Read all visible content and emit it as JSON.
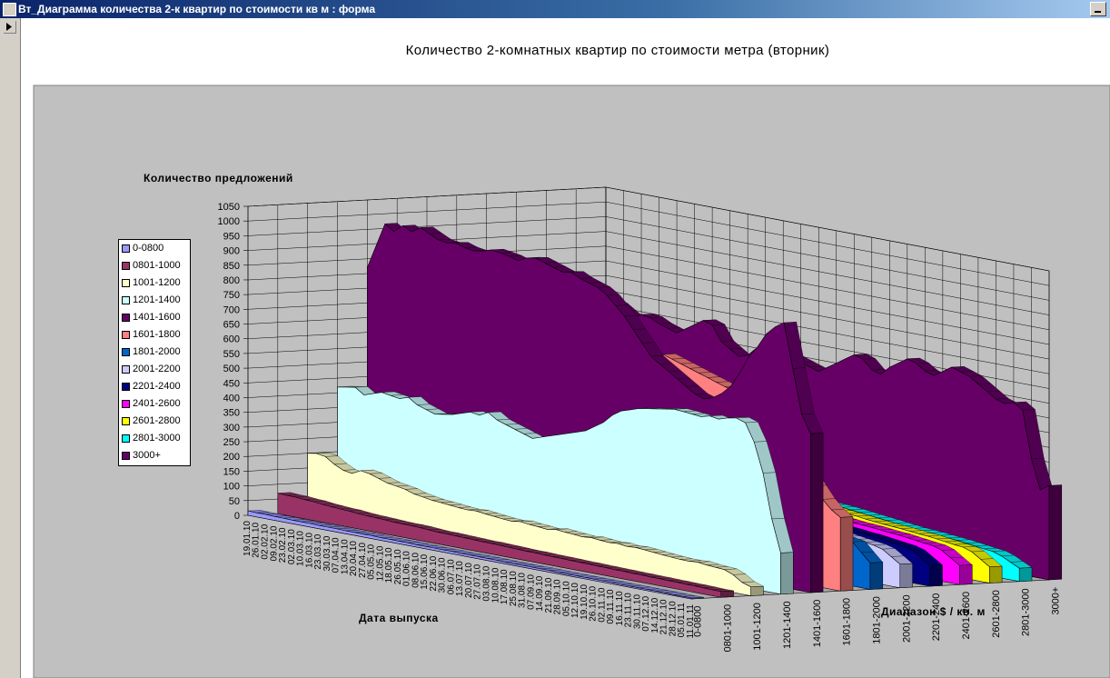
{
  "window": {
    "title": "Вт_Диаграмма количества 2-к квартир по стоимости кв м : форма"
  },
  "colors": {
    "chart_area": "#c0c0c0",
    "titlebar": "#0a246a"
  },
  "chart_data": {
    "type": "area",
    "variant": "3d",
    "title": "Количество 2-комнатных квартир по стоимости метра (вторник)",
    "ylabel": "Количество предложений",
    "xlabel": "Дата выпуска",
    "zlabel": "Диапазон $ / кв. м",
    "ylim": [
      0,
      1050
    ],
    "yticks": [
      0,
      50,
      100,
      150,
      200,
      250,
      300,
      350,
      400,
      450,
      500,
      550,
      600,
      650,
      700,
      750,
      800,
      850,
      900,
      950,
      1000,
      1050
    ],
    "grid": true,
    "legend_position": "left",
    "x": [
      "19.01.10",
      "26.01.10",
      "02.02.10",
      "09.02.10",
      "23.02.10",
      "02.03.10",
      "10.03.10",
      "16.03.10",
      "23.03.10",
      "30.03.10",
      "07.04.10",
      "13.04.10",
      "20.04.10",
      "27.04.10",
      "05.05.10",
      "12.05.10",
      "18.05.10",
      "26.05.10",
      "01.06.10",
      "08.06.10",
      "15.06.10",
      "22.06.10",
      "30.06.10",
      "06.07.10",
      "13.07.10",
      "20.07.10",
      "27.07.10",
      "03.08.10",
      "10.08.10",
      "17.08.10",
      "25.08.10",
      "31.08.10",
      "07.09.10",
      "14.09.10",
      "21.09.10",
      "28.09.10",
      "05.10.10",
      "12.10.10",
      "19.10.10",
      "26.10.10",
      "02.11.10",
      "09.11.10",
      "16.11.10",
      "23.11.10",
      "30.11.10",
      "07.12.10",
      "14.12.10",
      "21.12.10",
      "28.12.10",
      "05.01.11",
      "11.01.11"
    ],
    "series": [
      {
        "name": "0-0800",
        "color": "#9999ff",
        "values": [
          15,
          14,
          14,
          13,
          13,
          12,
          12,
          12,
          11,
          11,
          11,
          10,
          10,
          10,
          10,
          9,
          9,
          9,
          9,
          8,
          8,
          8,
          8,
          8,
          7,
          7,
          7,
          7,
          7,
          6,
          6,
          6,
          6,
          6,
          6,
          5,
          5,
          5,
          5,
          5,
          5,
          5,
          4,
          4,
          4,
          4,
          4,
          4,
          3,
          3,
          3
        ]
      },
      {
        "name": "0801-1000",
        "color": "#993366",
        "values": [
          70,
          68,
          68,
          65,
          64,
          60,
          58,
          56,
          55,
          52,
          50,
          49,
          48,
          46,
          45,
          45,
          44,
          42,
          40,
          40,
          39,
          38,
          37,
          36,
          36,
          35,
          34,
          33,
          32,
          32,
          31,
          30,
          30,
          29,
          28,
          28,
          27,
          27,
          26,
          26,
          25,
          25,
          24,
          24,
          23,
          23,
          22,
          22,
          21,
          20,
          20
        ]
      },
      {
        "name": "1001-1200",
        "color": "#ffffcc",
        "values": [
          200,
          205,
          200,
          180,
          165,
          160,
          175,
          170,
          160,
          150,
          145,
          140,
          130,
          125,
          120,
          118,
          115,
          112,
          110,
          112,
          108,
          105,
          102,
          100,
          104,
          100,
          98,
          95,
          100,
          97,
          95,
          92,
          95,
          92,
          90,
          92,
          88,
          90,
          88,
          85,
          82,
          80,
          78,
          78,
          80,
          76,
          74,
          72,
          60,
          40,
          30
        ]
      },
      {
        "name": "1201-1400",
        "color": "#ccffff",
        "values": [
          420,
          425,
          430,
          410,
          420,
          430,
          425,
          420,
          430,
          410,
          400,
          390,
          395,
          400,
          410,
          420,
          415,
          430,
          410,
          400,
          390,
          380,
          370,
          380,
          390,
          400,
          410,
          420,
          430,
          450,
          470,
          500,
          520,
          530,
          540,
          545,
          550,
          555,
          560,
          558,
          555,
          552,
          560,
          555,
          565,
          570,
          560,
          500,
          400,
          250,
          140
        ]
      },
      {
        "name": "1401-1600",
        "color": "#660066",
        "values": [
          820,
          900,
          980,
          960,
          985,
          970,
          990,
          975,
          960,
          955,
          960,
          950,
          945,
          950,
          960,
          955,
          950,
          940,
          955,
          960,
          950,
          940,
          930,
          935,
          920,
          910,
          900,
          880,
          850,
          820,
          780,
          740,
          700,
          680,
          660,
          640,
          620,
          600,
          590,
          600,
          620,
          650,
          700,
          760,
          800,
          850,
          880,
          900,
          750,
          600,
          540
        ]
      },
      {
        "name": "1601-1800",
        "color": "#ff8080",
        "values": [
          720,
          710,
          700,
          690,
          680,
          700,
          705,
          700,
          690,
          680,
          690,
          700,
          695,
          690,
          700,
          710,
          705,
          700,
          690,
          680,
          670,
          660,
          650,
          640,
          630,
          640,
          650,
          660,
          670,
          680,
          690,
          680,
          670,
          660,
          650,
          640,
          630,
          620,
          610,
          600,
          580,
          560,
          540,
          500,
          460,
          420,
          380,
          340,
          300,
          270,
          250
        ]
      },
      {
        "name": "1801-2000",
        "color": "#0066cc",
        "values": [
          300,
          310,
          305,
          300,
          310,
          305,
          300,
          295,
          300,
          305,
          300,
          295,
          290,
          295,
          300,
          295,
          290,
          285,
          290,
          295,
          290,
          285,
          280,
          275,
          270,
          265,
          260,
          255,
          250,
          245,
          240,
          235,
          230,
          225,
          220,
          215,
          210,
          205,
          200,
          195,
          190,
          185,
          180,
          175,
          170,
          165,
          160,
          155,
          150,
          120,
          90
        ]
      },
      {
        "name": "2001-2200",
        "color": "#ccccff",
        "values": [
          230,
          235,
          230,
          225,
          230,
          235,
          230,
          228,
          232,
          230,
          225,
          222,
          225,
          228,
          226,
          222,
          220,
          218,
          220,
          222,
          218,
          215,
          212,
          210,
          208,
          205,
          200,
          198,
          195,
          192,
          190,
          186,
          182,
          178,
          175,
          170,
          168,
          165,
          160,
          158,
          155,
          150,
          148,
          145,
          140,
          136,
          132,
          128,
          120,
          100,
          80
        ]
      },
      {
        "name": "2201-2400",
        "color": "#000080",
        "values": [
          220,
          222,
          218,
          215,
          218,
          220,
          216,
          214,
          218,
          215,
          212,
          210,
          212,
          214,
          210,
          208,
          205,
          202,
          205,
          206,
          202,
          200,
          198,
          195,
          192,
          190,
          186,
          184,
          180,
          178,
          175,
          172,
          168,
          165,
          162,
          158,
          155,
          152,
          148,
          145,
          142,
          140,
          136,
          134,
          130,
          126,
          122,
          118,
          110,
          90,
          70
        ]
      },
      {
        "name": "2401-2600",
        "color": "#ff00ff",
        "values": [
          205,
          208,
          206,
          202,
          205,
          208,
          205,
          202,
          205,
          202,
          200,
          198,
          200,
          202,
          198,
          196,
          194,
          192,
          194,
          195,
          192,
          190,
          188,
          185,
          182,
          180,
          178,
          175,
          172,
          170,
          168,
          165,
          162,
          158,
          155,
          152,
          148,
          145,
          142,
          140,
          138,
          135,
          132,
          130,
          126,
          122,
          118,
          115,
          105,
          85,
          65
        ]
      },
      {
        "name": "2601-2800",
        "color": "#ffff00",
        "values": [
          195,
          198,
          196,
          192,
          195,
          198,
          195,
          192,
          195,
          192,
          190,
          188,
          190,
          192,
          188,
          186,
          184,
          182,
          184,
          185,
          182,
          180,
          178,
          175,
          172,
          170,
          168,
          165,
          162,
          160,
          158,
          155,
          152,
          148,
          145,
          142,
          138,
          135,
          132,
          130,
          128,
          125,
          122,
          120,
          116,
          112,
          108,
          105,
          95,
          75,
          55
        ]
      },
      {
        "name": "2801-3000",
        "color": "#00ffff",
        "values": [
          175,
          178,
          176,
          172,
          175,
          178,
          175,
          172,
          175,
          172,
          170,
          168,
          170,
          172,
          168,
          166,
          164,
          162,
          164,
          165,
          162,
          160,
          158,
          155,
          152,
          150,
          148,
          145,
          142,
          140,
          138,
          135,
          132,
          128,
          125,
          122,
          118,
          115,
          112,
          110,
          108,
          105,
          102,
          100,
          96,
          92,
          88,
          85,
          75,
          60,
          45
        ]
      },
      {
        "name": "3000+",
        "color": "#660066",
        "values": [
          650,
          660,
          640,
          620,
          640,
          635,
          620,
          610,
          600,
          620,
          640,
          660,
          650,
          600,
          580,
          560,
          570,
          600,
          620,
          630,
          600,
          590,
          580,
          570,
          560,
          580,
          600,
          620,
          640,
          630,
          600,
          590,
          620,
          640,
          660,
          650,
          630,
          620,
          640,
          660,
          650,
          640,
          620,
          600,
          580,
          570,
          580,
          560,
          400,
          300,
          320
        ]
      }
    ]
  }
}
